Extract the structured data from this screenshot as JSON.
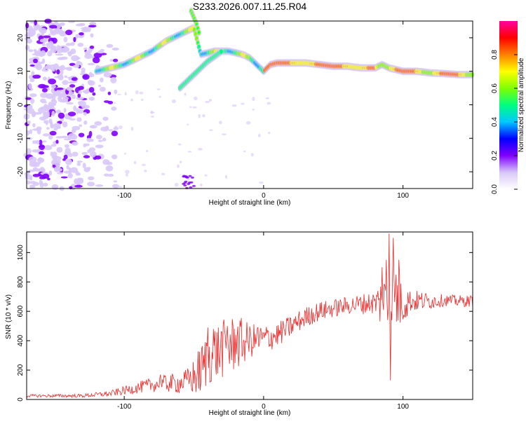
{
  "title": "S233.2026.007.11.25.R04",
  "chart_data": [
    {
      "type": "heatmap",
      "xlabel": "Height of straight line (km)",
      "ylabel": "Frequency (Hz)",
      "xlim": [
        -170,
        150
      ],
      "ylim": [
        -25,
        25
      ],
      "x_ticks": [
        -100,
        0,
        100
      ],
      "y_ticks": [
        20,
        10,
        0,
        -10,
        -20
      ],
      "colorbar": {
        "label": "Normalized spectral amplitude",
        "range": [
          0.0,
          1.0
        ],
        "ticks": [
          0.0,
          0.2,
          0.4,
          0.6,
          0.8
        ],
        "tick_labels": [
          "0.0",
          "0.2",
          "0.4",
          "0.6",
          "0.8"
        ],
        "colormap": [
          "#ffffff",
          "#d8c8f8",
          "#8000ff",
          "#0000ff",
          "#00c8ff",
          "#00ff80",
          "#80ff00",
          "#ffff00",
          "#ff8000",
          "#ff0000",
          "#ff00a0"
        ]
      },
      "ridge_main": [
        [
          -120,
          10
        ],
        [
          -110,
          11
        ],
        [
          -100,
          12
        ],
        [
          -90,
          14
        ],
        [
          -80,
          16
        ],
        [
          -70,
          19
        ],
        [
          -60,
          21
        ],
        [
          -50,
          23
        ],
        [
          -45,
          15
        ],
        [
          -35,
          16
        ],
        [
          -25,
          16
        ],
        [
          -15,
          15
        ],
        [
          -10,
          14
        ],
        [
          -5,
          12
        ],
        [
          0,
          10
        ],
        [
          5,
          12
        ],
        [
          10,
          12.5
        ],
        [
          20,
          12.5
        ],
        [
          30,
          12.5
        ],
        [
          40,
          12
        ],
        [
          50,
          11.5
        ],
        [
          60,
          11.5
        ],
        [
          70,
          11
        ],
        [
          80,
          11
        ],
        [
          85,
          12
        ],
        [
          90,
          11
        ],
        [
          95,
          10.5
        ],
        [
          100,
          10
        ],
        [
          110,
          10
        ],
        [
          120,
          9.5
        ],
        [
          130,
          9.3
        ],
        [
          140,
          9
        ],
        [
          150,
          9
        ]
      ],
      "ridge_branch": [
        [
          -60,
          5
        ],
        [
          -50,
          9
        ],
        [
          -40,
          13
        ],
        [
          -30,
          16
        ]
      ],
      "ridge_upper": [
        [
          -52,
          28
        ],
        [
          -48,
          24
        ],
        [
          -46,
          21
        ]
      ]
    },
    {
      "type": "line",
      "xlabel": "Height of straight line (km)",
      "ylabel": "SNR (10 * v/v)",
      "xlim": [
        -170,
        150
      ],
      "ylim": [
        0,
        1140
      ],
      "x_ticks": [
        -100,
        0,
        100
      ],
      "y_ticks": [
        0,
        200,
        400,
        600,
        800,
        1000
      ],
      "color": "#f02828",
      "envelope": [
        [
          -170,
          25
        ],
        [
          -130,
          25
        ],
        [
          -110,
          40
        ],
        [
          -100,
          60
        ],
        [
          -90,
          80
        ],
        [
          -80,
          100
        ],
        [
          -70,
          110
        ],
        [
          -60,
          110
        ],
        [
          -50,
          150
        ],
        [
          -45,
          200
        ],
        [
          -40,
          280
        ],
        [
          -35,
          320
        ],
        [
          -30,
          340
        ],
        [
          -20,
          380
        ],
        [
          -10,
          400
        ],
        [
          0,
          410
        ],
        [
          10,
          440
        ],
        [
          20,
          500
        ],
        [
          30,
          560
        ],
        [
          40,
          600
        ],
        [
          50,
          620
        ],
        [
          60,
          640
        ],
        [
          70,
          650
        ],
        [
          80,
          660
        ],
        [
          90,
          660
        ],
        [
          100,
          670
        ],
        [
          110,
          670
        ],
        [
          120,
          670
        ],
        [
          130,
          675
        ],
        [
          140,
          670
        ],
        [
          150,
          670
        ]
      ],
      "noise": [
        [
          -170,
          10
        ],
        [
          -130,
          12
        ],
        [
          -110,
          20
        ],
        [
          -90,
          40
        ],
        [
          -70,
          60
        ],
        [
          -55,
          80
        ],
        [
          -45,
          180
        ],
        [
          -35,
          200
        ],
        [
          -20,
          200
        ],
        [
          -10,
          120
        ],
        [
          0,
          100
        ],
        [
          15,
          80
        ],
        [
          30,
          70
        ],
        [
          60,
          60
        ],
        [
          80,
          80
        ],
        [
          85,
          200
        ],
        [
          95,
          250
        ],
        [
          105,
          80
        ],
        [
          130,
          40
        ],
        [
          150,
          40
        ]
      ],
      "spikes": [
        [
          -74,
          170
        ],
        [
          -40,
          490
        ],
        [
          -36,
          480
        ],
        [
          -30,
          460
        ],
        [
          -26,
          500
        ],
        [
          -20,
          440
        ],
        [
          -4,
          490
        ],
        [
          3,
          470
        ],
        [
          85,
          900
        ],
        [
          88,
          950
        ],
        [
          90,
          1130
        ],
        [
          91,
          130
        ],
        [
          93,
          1100
        ],
        [
          95,
          850
        ],
        [
          97,
          950
        ]
      ]
    }
  ]
}
